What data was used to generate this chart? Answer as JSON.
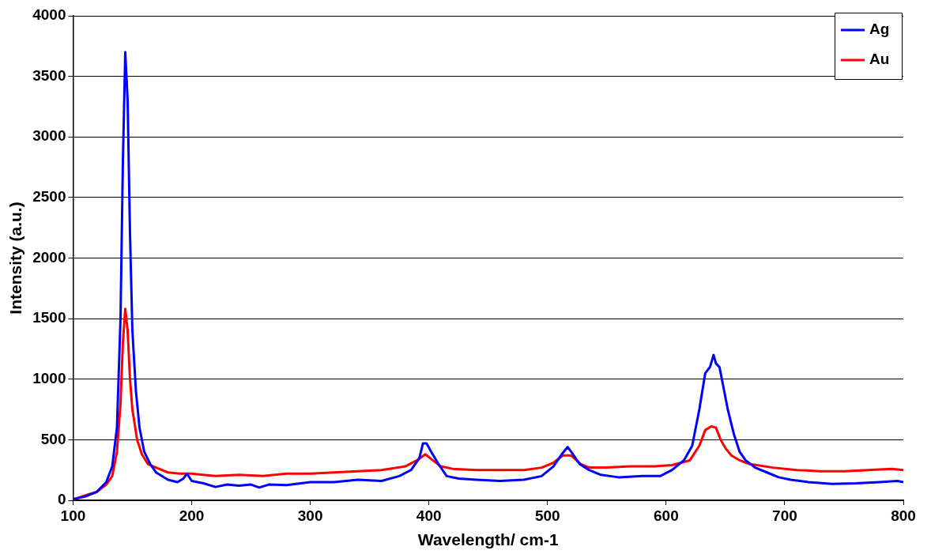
{
  "chart_data": {
    "type": "line",
    "xlabel": "Wavelength/ cm-1",
    "ylabel": "Intensity (a.u.)",
    "xlim": [
      100,
      800
    ],
    "ylim": [
      0,
      4000
    ],
    "xticks": [
      100,
      200,
      300,
      400,
      500,
      600,
      700,
      800
    ],
    "yticks": [
      0,
      500,
      1000,
      1500,
      2000,
      2500,
      3000,
      3500,
      4000
    ],
    "grid": "y",
    "legend": "top right",
    "marker": "none",
    "line_style": "solid",
    "series": [
      {
        "name": "Ag",
        "color": "#0000ff",
        "x": [
          100,
          110,
          120,
          128,
          133,
          137,
          140,
          142,
          144,
          146,
          148,
          150,
          153,
          156,
          160,
          165,
          170,
          180,
          188,
          193,
          196,
          200,
          210,
          220,
          230,
          240,
          250,
          257,
          265,
          280,
          300,
          320,
          340,
          360,
          375,
          385,
          392,
          395,
          398,
          402,
          408,
          415,
          425,
          440,
          460,
          480,
          495,
          505,
          512,
          517,
          520,
          527,
          535,
          545,
          560,
          580,
          595,
          605,
          615,
          622,
          628,
          633,
          637,
          640,
          642,
          645,
          648,
          652,
          657,
          662,
          667,
          675,
          685,
          695,
          705,
          720,
          740,
          760,
          780,
          795,
          800
        ],
        "values": [
          10,
          30,
          70,
          150,
          280,
          600,
          1500,
          2800,
          3700,
          3300,
          2200,
          1400,
          900,
          600,
          400,
          300,
          230,
          170,
          150,
          180,
          220,
          160,
          140,
          110,
          130,
          120,
          130,
          105,
          130,
          125,
          150,
          150,
          170,
          160,
          200,
          250,
          350,
          470,
          470,
          400,
          300,
          200,
          180,
          170,
          160,
          170,
          200,
          280,
          380,
          440,
          400,
          300,
          250,
          210,
          190,
          200,
          200,
          250,
          330,
          450,
          750,
          1050,
          1100,
          1200,
          1130,
          1100,
          950,
          750,
          550,
          400,
          330,
          270,
          230,
          190,
          170,
          150,
          135,
          140,
          150,
          160,
          150
        ]
      },
      {
        "name": "Au",
        "color": "#ff0000",
        "x": [
          100,
          110,
          120,
          128,
          133,
          137,
          140,
          142,
          144,
          146,
          148,
          150,
          154,
          158,
          163,
          170,
          180,
          190,
          200,
          220,
          240,
          260,
          280,
          300,
          320,
          340,
          360,
          380,
          390,
          397,
          402,
          410,
          420,
          440,
          460,
          480,
          495,
          505,
          513,
          520,
          528,
          535,
          550,
          570,
          590,
          605,
          620,
          628,
          633,
          638,
          642,
          646,
          650,
          655,
          662,
          670,
          690,
          710,
          730,
          750,
          770,
          790,
          800
        ],
        "values": [
          5,
          40,
          70,
          130,
          200,
          400,
          800,
          1300,
          1580,
          1400,
          1000,
          750,
          500,
          380,
          300,
          270,
          230,
          220,
          220,
          200,
          210,
          200,
          220,
          220,
          230,
          240,
          250,
          280,
          330,
          380,
          340,
          280,
          260,
          250,
          250,
          250,
          270,
          310,
          370,
          370,
          300,
          270,
          270,
          280,
          280,
          290,
          330,
          450,
          580,
          610,
          600,
          500,
          430,
          370,
          330,
          300,
          270,
          250,
          240,
          240,
          250,
          260,
          250
        ]
      }
    ]
  }
}
